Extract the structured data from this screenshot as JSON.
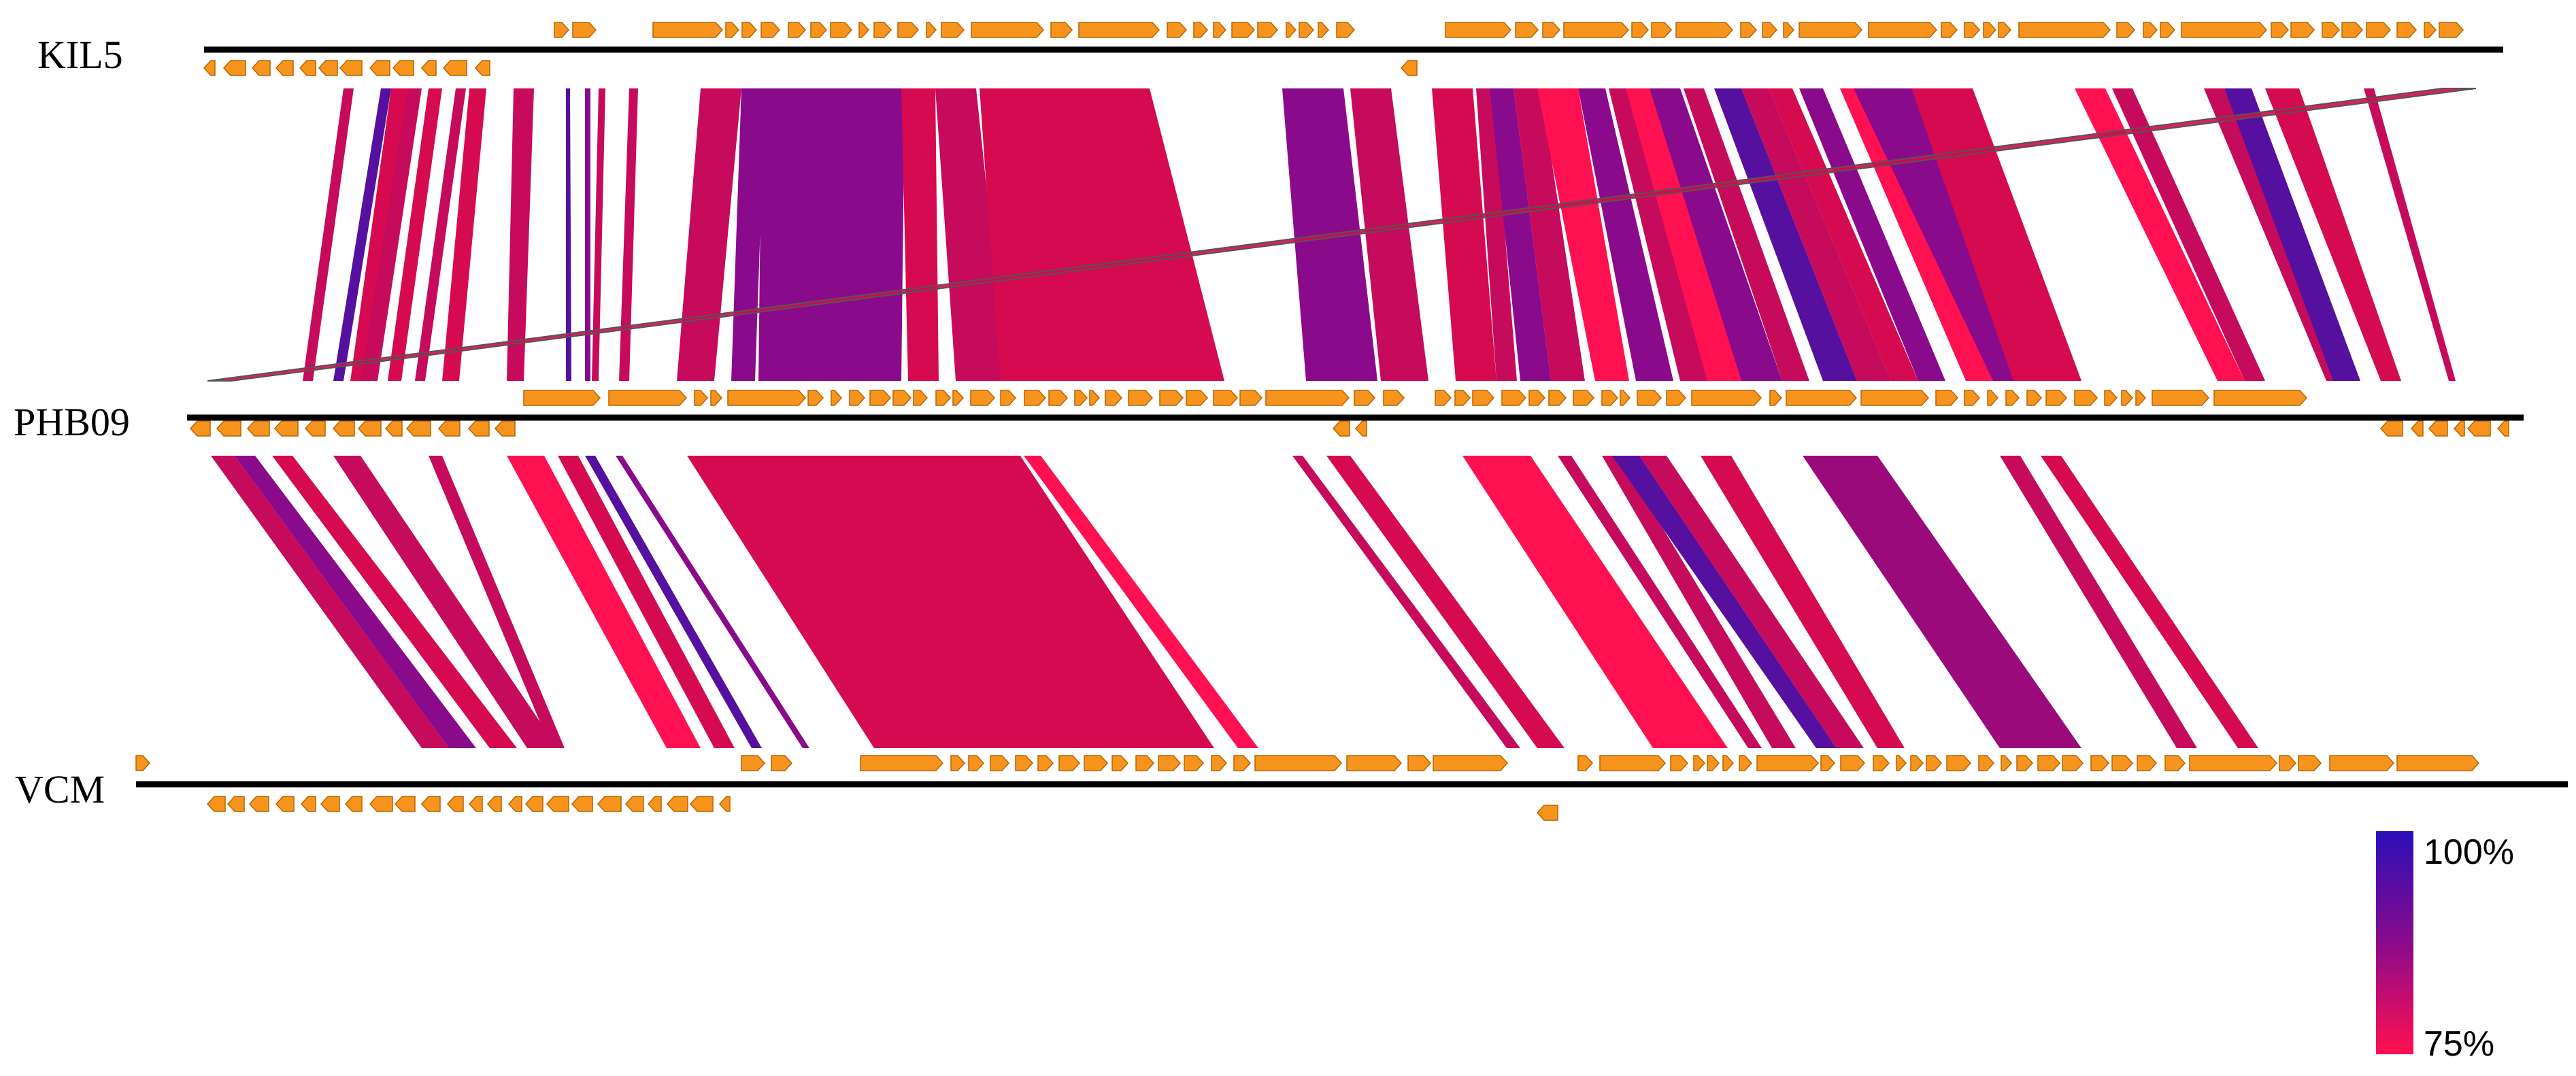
{
  "genomes": [
    {
      "id": "kil5",
      "label": "KIL5"
    },
    {
      "id": "phb09",
      "label": "PHB09"
    },
    {
      "id": "vcm",
      "label": "VCM"
    }
  ],
  "legend": {
    "max_label": "100%",
    "min_label": "75%",
    "max_color": "#2b0fb8",
    "mid_color": "#8a0a8c",
    "min_color": "#ff1050"
  },
  "colors": {
    "gene": "#f7941d",
    "gene_stroke": "#b86400",
    "backbone": "#000000",
    "band_dark_purple": "#8a0a8c",
    "band_purple": "#9a0a7a",
    "band_magenta": "#c60a5c",
    "band_crimson": "#d50a50",
    "band_red": "#ff1050",
    "band_indigo": "#5510a0"
  }
}
